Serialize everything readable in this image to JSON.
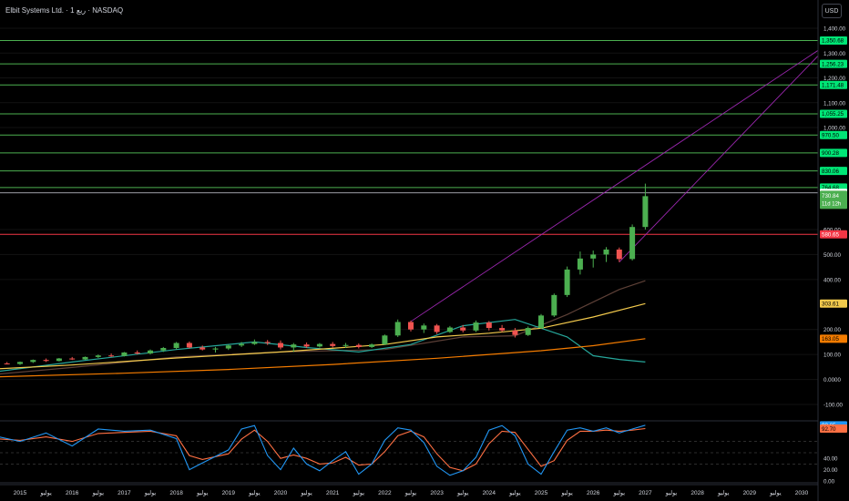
{
  "header": {
    "title": "Elbit Systems Ltd. · 1 ربع · NASDAQ"
  },
  "currency_button": "USD",
  "colors": {
    "up": "#26a69a",
    "upBody": "#4caf50",
    "down": "#ef5350",
    "hline": "#4caf50",
    "redline": "#f23645",
    "trend": "#9c27b0",
    "ma_yellow": "#f2c94c",
    "ma_orange": "#f57c00",
    "rsi_blue": "#2196f3",
    "rsi_orange": "#ff7043"
  },
  "chart_data": {
    "type": "candlestick",
    "price_axis": {
      "ticks": [
        "1,400.00",
        "1,300.00",
        "1,200.00",
        "1,100.00",
        "1,000.00",
        "600.00",
        "500.00",
        "400.00",
        "200.00",
        "100.00",
        "0.0000",
        "-100.00"
      ],
      "tick_values": [
        1400,
        1300,
        1200,
        1100,
        1000,
        600,
        500,
        400,
        200,
        100,
        0,
        -100
      ]
    },
    "time_axis": {
      "labels": [
        "2015",
        "يوليو",
        "2016",
        "يوليو",
        "2017",
        "يوليو",
        "2018",
        "يوليو",
        "2019",
        "يوليو",
        "2020",
        "يوليو",
        "2021",
        "يوليو",
        "2022",
        "يوليو",
        "2023",
        "يوليو",
        "2024",
        "يوليو",
        "2025",
        "يوليو",
        "2026",
        "يوليو",
        "2027",
        "يوليو",
        "2028",
        "يوليو",
        "2029",
        "يوليو",
        "2030"
      ],
      "label_years": [
        2015,
        2015.5,
        2016,
        2016.5,
        2017,
        2017.5,
        2018,
        2018.5,
        2019,
        2019.5,
        2020,
        2020.5,
        2021,
        2021.5,
        2022,
        2022.5,
        2023,
        2023.5,
        2024,
        2024.5,
        2025,
        2025.5,
        2026,
        2026.5,
        2027,
        2027.5,
        2028,
        2028.5,
        2029,
        2029.5,
        2030
      ]
    },
    "horizontal_levels": [
      1350.68,
      1256.23,
      1171.48,
      1055.25,
      970.5,
      900.28,
      830.06,
      764.68
    ],
    "level_labels": [
      "1,350.68",
      "1,256.23",
      "1,171.48",
      "1,055.25",
      "970.50",
      "900.28",
      "830.06",
      "764.68"
    ],
    "white_level": {
      "value": 743.86,
      "label": "743.86"
    },
    "red_level": {
      "value": 580.65,
      "label": "580.65"
    },
    "last_price": {
      "value": 730.84,
      "label": "730.84",
      "countdown": "11d 12h"
    },
    "ma_labels": [
      {
        "value": 303.61,
        "label": "303.61"
      },
      {
        "value": 163.05,
        "label": "163.05"
      }
    ],
    "candles_ohlc": [
      [
        2014.5,
        60,
        66,
        55,
        64
      ],
      [
        2014.75,
        64,
        70,
        60,
        62
      ],
      [
        2015,
        62,
        72,
        58,
        70
      ],
      [
        2015.25,
        70,
        80,
        66,
        78
      ],
      [
        2015.5,
        78,
        84,
        70,
        74
      ],
      [
        2015.75,
        74,
        86,
        72,
        84
      ],
      [
        2016,
        84,
        90,
        78,
        80
      ],
      [
        2016.25,
        80,
        92,
        78,
        90
      ],
      [
        2016.5,
        90,
        100,
        86,
        96
      ],
      [
        2016.75,
        96,
        104,
        90,
        94
      ],
      [
        2017,
        94,
        110,
        92,
        108
      ],
      [
        2017.25,
        108,
        116,
        100,
        104
      ],
      [
        2017.5,
        104,
        120,
        100,
        116
      ],
      [
        2017.75,
        116,
        130,
        110,
        126
      ],
      [
        2018,
        126,
        150,
        120,
        146
      ],
      [
        2018.25,
        146,
        152,
        124,
        128
      ],
      [
        2018.5,
        128,
        136,
        116,
        120
      ],
      [
        2018.75,
        120,
        130,
        108,
        124
      ],
      [
        2019,
        124,
        140,
        118,
        136
      ],
      [
        2019.25,
        136,
        150,
        130,
        142
      ],
      [
        2019.5,
        142,
        160,
        138,
        150
      ],
      [
        2019.75,
        150,
        158,
        138,
        146
      ],
      [
        2020,
        146,
        156,
        120,
        128
      ],
      [
        2020.25,
        128,
        146,
        110,
        140
      ],
      [
        2020.5,
        140,
        148,
        126,
        132
      ],
      [
        2020.75,
        132,
        146,
        128,
        142
      ],
      [
        2021,
        142,
        150,
        128,
        134
      ],
      [
        2021.25,
        134,
        146,
        126,
        138
      ],
      [
        2021.5,
        138,
        144,
        124,
        130
      ],
      [
        2021.75,
        130,
        144,
        126,
        140
      ],
      [
        2022,
        140,
        180,
        138,
        176
      ],
      [
        2022.25,
        176,
        240,
        170,
        230
      ],
      [
        2022.5,
        230,
        236,
        192,
        200
      ],
      [
        2022.75,
        200,
        224,
        186,
        216
      ],
      [
        2023,
        216,
        222,
        182,
        190
      ],
      [
        2023.25,
        190,
        214,
        186,
        208
      ],
      [
        2023.5,
        208,
        218,
        188,
        196
      ],
      [
        2023.75,
        196,
        236,
        190,
        228
      ],
      [
        2024,
        228,
        234,
        196,
        206
      ],
      [
        2024.25,
        206,
        218,
        190,
        196
      ],
      [
        2024.5,
        196,
        206,
        168,
        178
      ],
      [
        2024.75,
        178,
        212,
        174,
        206
      ],
      [
        2025,
        206,
        262,
        202,
        256
      ],
      [
        2025.25,
        256,
        344,
        250,
        338
      ],
      [
        2025.5,
        338,
        452,
        330,
        440
      ],
      [
        2025.75,
        440,
        512,
        420,
        484
      ],
      [
        2026,
        484,
        516,
        448,
        500
      ],
      [
        2026.25,
        500,
        530,
        470,
        520
      ],
      [
        2026.5,
        520,
        528,
        470,
        482
      ],
      [
        2026.75,
        482,
        620,
        476,
        610
      ],
      [
        2027,
        610,
        780,
        600,
        730.84
      ]
    ],
    "ma_yellow": [
      [
        2014.5,
        42
      ],
      [
        2016,
        58
      ],
      [
        2018,
        86
      ],
      [
        2020,
        110
      ],
      [
        2022,
        140
      ],
      [
        2023,
        170
      ],
      [
        2024,
        185
      ],
      [
        2025,
        205
      ],
      [
        2026,
        250
      ],
      [
        2027,
        303.61
      ]
    ],
    "ma_orange": [
      [
        2014.5,
        10
      ],
      [
        2017,
        25
      ],
      [
        2019,
        40
      ],
      [
        2021,
        60
      ],
      [
        2023,
        85
      ],
      [
        2025,
        115
      ],
      [
        2026,
        135
      ],
      [
        2027,
        163.05
      ]
    ],
    "ma_teal": [
      [
        2014.5,
        30
      ],
      [
        2016,
        70
      ],
      [
        2018,
        120
      ],
      [
        2019.5,
        150
      ],
      [
        2020.5,
        128
      ],
      [
        2021.5,
        110
      ],
      [
        2022.5,
        140
      ],
      [
        2023.5,
        215
      ],
      [
        2024.5,
        240
      ],
      [
        2025.5,
        170
      ],
      [
        2026,
        95
      ],
      [
        2026.5,
        80
      ],
      [
        2027,
        70
      ]
    ],
    "ma_dark": [
      [
        2014.5,
        20
      ],
      [
        2016,
        48
      ],
      [
        2018,
        90
      ],
      [
        2020,
        110
      ],
      [
        2022,
        120
      ],
      [
        2023.5,
        170
      ],
      [
        2024.5,
        175
      ],
      [
        2025.5,
        260
      ],
      [
        2026.5,
        360
      ],
      [
        2027,
        395
      ]
    ],
    "trend_lines": [
      {
        "from": [
          2022.5,
          232
        ],
        "to": [
          2030.6,
          1350.68
        ]
      },
      {
        "from": [
          2026.5,
          470
        ],
        "to": [
          2030.6,
          1350.68
        ]
      }
    ],
    "rsi": {
      "labels": [
        {
          "value": 98.65,
          "label": "98.65"
        },
        {
          "value": 92.7,
          "label": "92.70"
        },
        "40.00",
        "20.00",
        "0.00"
      ],
      "tick_values": [
        40,
        20,
        0
      ],
      "blue": [
        [
          2014.5,
          80
        ],
        [
          2015,
          70
        ],
        [
          2015.5,
          85
        ],
        [
          2016,
          62
        ],
        [
          2016.5,
          92
        ],
        [
          2017,
          88
        ],
        [
          2017.5,
          90
        ],
        [
          2018,
          75
        ],
        [
          2018.25,
          20
        ],
        [
          2018.5,
          32
        ],
        [
          2019,
          55
        ],
        [
          2019.25,
          92
        ],
        [
          2019.5,
          98
        ],
        [
          2019.75,
          45
        ],
        [
          2020,
          20
        ],
        [
          2020.25,
          58
        ],
        [
          2020.5,
          30
        ],
        [
          2020.75,
          18
        ],
        [
          2021,
          36
        ],
        [
          2021.25,
          52
        ],
        [
          2021.5,
          12
        ],
        [
          2021.75,
          30
        ],
        [
          2022,
          72
        ],
        [
          2022.25,
          94
        ],
        [
          2022.5,
          90
        ],
        [
          2022.75,
          68
        ],
        [
          2023,
          26
        ],
        [
          2023.25,
          10
        ],
        [
          2023.5,
          18
        ],
        [
          2023.75,
          42
        ],
        [
          2024,
          90
        ],
        [
          2024.25,
          98
        ],
        [
          2024.5,
          80
        ],
        [
          2024.75,
          30
        ],
        [
          2025,
          12
        ],
        [
          2025.25,
          52
        ],
        [
          2025.5,
          90
        ],
        [
          2025.75,
          94
        ],
        [
          2026,
          88
        ],
        [
          2026.25,
          94
        ],
        [
          2026.5,
          85
        ],
        [
          2026.75,
          92
        ],
        [
          2027,
          98.65
        ]
      ],
      "orange": [
        [
          2014.5,
          75
        ],
        [
          2015,
          72
        ],
        [
          2015.5,
          78
        ],
        [
          2016,
          70
        ],
        [
          2016.5,
          84
        ],
        [
          2017,
          86
        ],
        [
          2017.5,
          88
        ],
        [
          2018,
          80
        ],
        [
          2018.25,
          45
        ],
        [
          2018.5,
          38
        ],
        [
          2019,
          48
        ],
        [
          2019.25,
          74
        ],
        [
          2019.5,
          90
        ],
        [
          2019.75,
          70
        ],
        [
          2020,
          40
        ],
        [
          2020.25,
          46
        ],
        [
          2020.5,
          40
        ],
        [
          2020.75,
          30
        ],
        [
          2021,
          32
        ],
        [
          2021.25,
          42
        ],
        [
          2021.5,
          28
        ],
        [
          2021.75,
          30
        ],
        [
          2022,
          52
        ],
        [
          2022.25,
          80
        ],
        [
          2022.5,
          88
        ],
        [
          2022.75,
          78
        ],
        [
          2023,
          48
        ],
        [
          2023.25,
          24
        ],
        [
          2023.5,
          18
        ],
        [
          2023.75,
          30
        ],
        [
          2024,
          66
        ],
        [
          2024.25,
          88
        ],
        [
          2024.5,
          86
        ],
        [
          2024.75,
          56
        ],
        [
          2025,
          26
        ],
        [
          2025.25,
          36
        ],
        [
          2025.5,
          72
        ],
        [
          2025.75,
          88
        ],
        [
          2026,
          88
        ],
        [
          2026.25,
          90
        ],
        [
          2026.5,
          88
        ],
        [
          2026.75,
          90
        ],
        [
          2027,
          92.7
        ]
      ]
    }
  }
}
